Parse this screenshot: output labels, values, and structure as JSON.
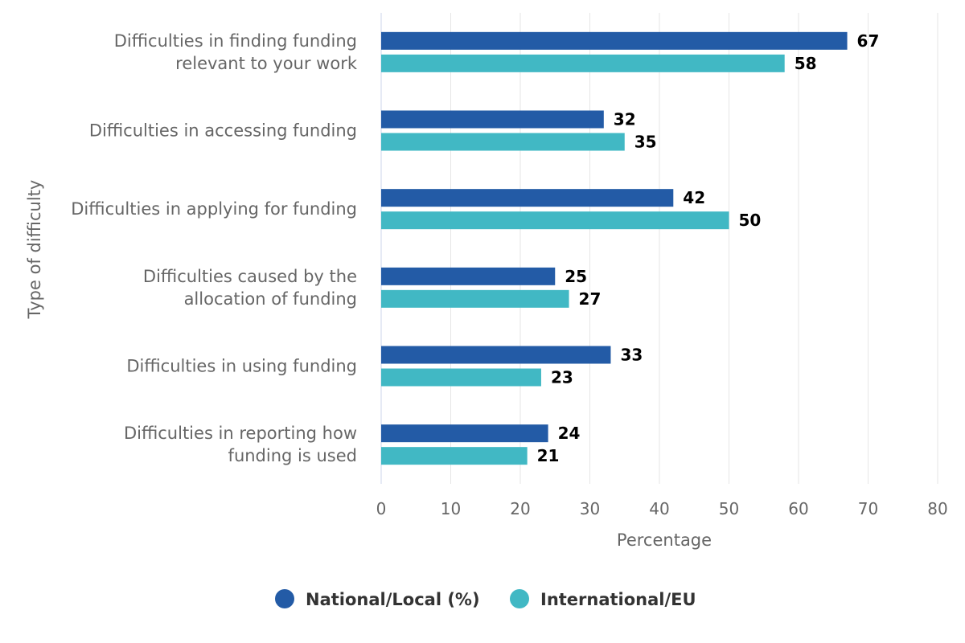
{
  "chart_data": {
    "type": "bar",
    "orientation": "horizontal",
    "categories": [
      [
        "Difficulties in finding funding",
        "relevant to your work"
      ],
      [
        "Difficulties in accessing funding"
      ],
      [
        "Difficulties in applying for funding"
      ],
      [
        "Difficulties caused by the",
        "allocation of funding"
      ],
      [
        "Difficulties in using funding"
      ],
      [
        "Difficulties in reporting how",
        "funding is used"
      ]
    ],
    "series": [
      {
        "name": "National/Local (%)",
        "color": "#235ba6",
        "values": [
          67,
          32,
          42,
          25,
          33,
          24
        ]
      },
      {
        "name": "International/EU",
        "color": "#41b8c4",
        "values": [
          58,
          35,
          50,
          27,
          23,
          21
        ]
      }
    ],
    "xlabel": "Percentage",
    "ylabel": "Type of difficulty",
    "xlim": [
      0,
      80
    ],
    "xticks": [
      0,
      10,
      20,
      30,
      40,
      50,
      60,
      70,
      80
    ],
    "grid": true,
    "data_labels": true,
    "legend_position": "bottom"
  }
}
